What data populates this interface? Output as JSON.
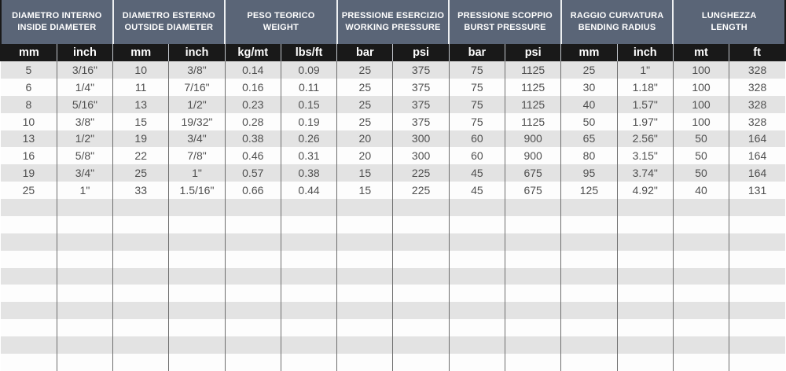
{
  "table": {
    "column_groups": [
      {
        "title_it": "DIAMETRO INTERNO",
        "title_en": "INSIDE DIAMETER",
        "units": [
          "mm",
          "inch"
        ]
      },
      {
        "title_it": "DIAMETRO ESTERNO",
        "title_en": "OUTSIDE DIAMETER",
        "units": [
          "mm",
          "inch"
        ]
      },
      {
        "title_it": "PESO TEORICO",
        "title_en": "WEIGHT",
        "units": [
          "kg/mt",
          "lbs/ft"
        ]
      },
      {
        "title_it": "PRESSIONE ESERCIZIO",
        "title_en": "WORKING PRESSURE",
        "units": [
          "bar",
          "psi"
        ]
      },
      {
        "title_it": "PRESSIONE SCOPPIO",
        "title_en": "BURST PRESSURE",
        "units": [
          "bar",
          "psi"
        ]
      },
      {
        "title_it": "RAGGIO CURVATURA",
        "title_en": "BENDING RADIUS",
        "units": [
          "mm",
          "inch"
        ]
      },
      {
        "title_it": "LUNGHEZZA",
        "title_en": "LENGTH",
        "units": [
          "mt",
          "ft"
        ]
      }
    ],
    "rows": [
      [
        "5",
        "3/16\"",
        "10",
        "3/8\"",
        "0.14",
        "0.09",
        "25",
        "375",
        "75",
        "1125",
        "25",
        "1\"",
        "100",
        "328"
      ],
      [
        "6",
        "1/4\"",
        "11",
        "7/16\"",
        "0.16",
        "0.11",
        "25",
        "375",
        "75",
        "1125",
        "30",
        "1.18\"",
        "100",
        "328"
      ],
      [
        "8",
        "5/16\"",
        "13",
        "1/2\"",
        "0.23",
        "0.15",
        "25",
        "375",
        "75",
        "1125",
        "40",
        "1.57\"",
        "100",
        "328"
      ],
      [
        "10",
        "3/8\"",
        "15",
        "19/32\"",
        "0.28",
        "0.19",
        "25",
        "375",
        "75",
        "1125",
        "50",
        "1.97\"",
        "100",
        "328"
      ],
      [
        "13",
        "1/2\"",
        "19",
        "3/4\"",
        "0.38",
        "0.26",
        "20",
        "300",
        "60",
        "900",
        "65",
        "2.56\"",
        "50",
        "164"
      ],
      [
        "16",
        "5/8\"",
        "22",
        "7/8\"",
        "0.46",
        "0.31",
        "20",
        "300",
        "60",
        "900",
        "80",
        "3.15\"",
        "50",
        "164"
      ],
      [
        "19",
        "3/4\"",
        "25",
        "1\"",
        "0.57",
        "0.38",
        "15",
        "225",
        "45",
        "675",
        "95",
        "3.74\"",
        "50",
        "164"
      ],
      [
        "25",
        "1\"",
        "33",
        "1.5/16\"",
        "0.66",
        "0.44",
        "15",
        "225",
        "45",
        "675",
        "125",
        "4.92\"",
        "40",
        "131"
      ]
    ],
    "empty_row_count": 10,
    "colors": {
      "group_header_bg": "#5a6577",
      "unit_row_bg": "#191919",
      "stripe_gray": "#e3e3e3",
      "stripe_white": "#fdfdfd",
      "grid_line": "#6e6e6e",
      "data_text": "#4f4f4f",
      "header_text": "#ffffff"
    }
  },
  "chart_data": {
    "type": "table",
    "title": "",
    "columns": [
      "DIAMETRO INTERNO mm",
      "DIAMETRO INTERNO inch",
      "DIAMETRO ESTERNO mm",
      "DIAMETRO ESTERNO inch",
      "PESO TEORICO kg/mt",
      "PESO TEORICO lbs/ft",
      "PRESSIONE ESERCIZIO bar",
      "PRESSIONE ESERCIZIO psi",
      "PRESSIONE SCOPPIO bar",
      "PRESSIONE SCOPPIO psi",
      "RAGGIO CURVATURA mm",
      "RAGGIO CURVATURA inch",
      "LUNGHEZZA mt",
      "LUNGHEZZA ft"
    ],
    "rows": [
      [
        "5",
        "3/16\"",
        "10",
        "3/8\"",
        "0.14",
        "0.09",
        "25",
        "375",
        "75",
        "1125",
        "25",
        "1\"",
        "100",
        "328"
      ],
      [
        "6",
        "1/4\"",
        "11",
        "7/16\"",
        "0.16",
        "0.11",
        "25",
        "375",
        "75",
        "1125",
        "30",
        "1.18\"",
        "100",
        "328"
      ],
      [
        "8",
        "5/16\"",
        "13",
        "1/2\"",
        "0.23",
        "0.15",
        "25",
        "375",
        "75",
        "1125",
        "40",
        "1.57\"",
        "100",
        "328"
      ],
      [
        "10",
        "3/8\"",
        "15",
        "19/32\"",
        "0.28",
        "0.19",
        "25",
        "375",
        "75",
        "1125",
        "50",
        "1.97\"",
        "100",
        "328"
      ],
      [
        "13",
        "1/2\"",
        "19",
        "3/4\"",
        "0.38",
        "0.26",
        "20",
        "300",
        "60",
        "900",
        "65",
        "2.56\"",
        "50",
        "164"
      ],
      [
        "16",
        "5/8\"",
        "22",
        "7/8\"",
        "0.46",
        "0.31",
        "20",
        "300",
        "60",
        "900",
        "80",
        "3.15\"",
        "50",
        "164"
      ],
      [
        "19",
        "3/4\"",
        "25",
        "1\"",
        "0.57",
        "0.38",
        "15",
        "225",
        "45",
        "675",
        "95",
        "3.74\"",
        "50",
        "164"
      ],
      [
        "25",
        "1\"",
        "33",
        "1.5/16\"",
        "0.66",
        "0.44",
        "15",
        "225",
        "45",
        "675",
        "125",
        "4.92\"",
        "40",
        "131"
      ]
    ]
  }
}
